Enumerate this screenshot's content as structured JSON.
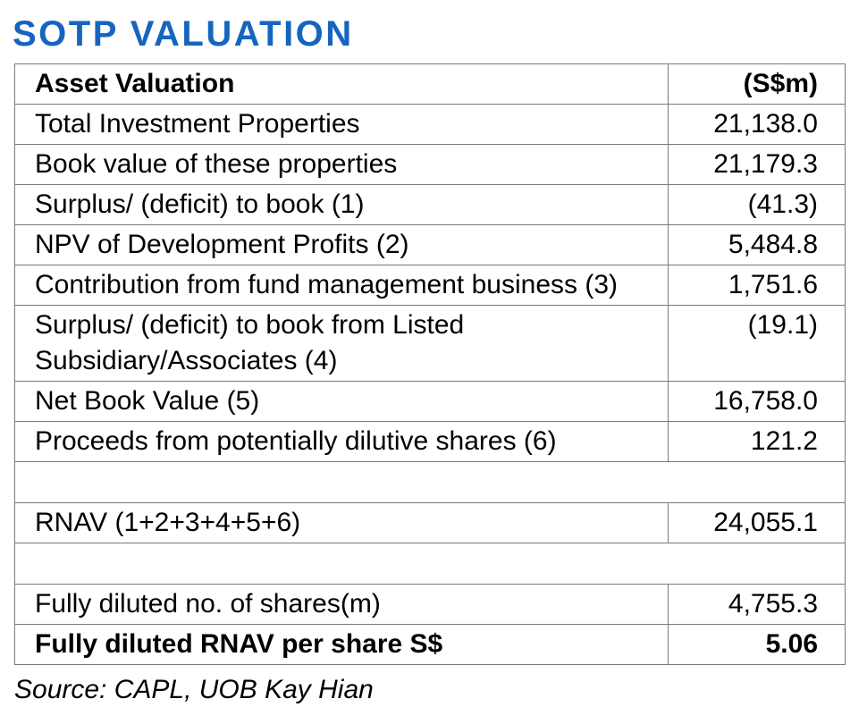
{
  "title": "SOTP VALUATION",
  "accent_color": "#1565c0",
  "table": {
    "header": {
      "label": "Asset Valuation",
      "unit": "(S$m)"
    },
    "rows": [
      {
        "label": "Total Investment Properties",
        "value": "21,138.0"
      },
      {
        "label": "Book value of these properties",
        "value": "21,179.3"
      },
      {
        "label": "Surplus/ (deficit) to book (1)",
        "value": "(41.3)"
      },
      {
        "label": "NPV of Development Profits (2)",
        "value": "5,484.8"
      },
      {
        "label": "Contribution from fund management business (3)",
        "value": "1,751.6"
      },
      {
        "label": "Surplus/ (deficit) to book from Listed Subsidiary/Associates (4)",
        "value": "(19.1)"
      },
      {
        "label": "Net Book Value (5)",
        "value": "16,758.0"
      },
      {
        "label": "Proceeds from potentially dilutive shares (6)",
        "value": "121.2"
      },
      {
        "label": "",
        "value": ""
      },
      {
        "label": "RNAV (1+2+3+4+5+6)",
        "value": "24,055.1"
      },
      {
        "label": "",
        "value": ""
      },
      {
        "label": "Fully diluted no. of shares(m)",
        "value": "4,755.3"
      },
      {
        "label": "Fully diluted RNAV per share S$",
        "value": "5.06"
      }
    ]
  },
  "source": "Source: CAPL, UOB Kay Hian"
}
